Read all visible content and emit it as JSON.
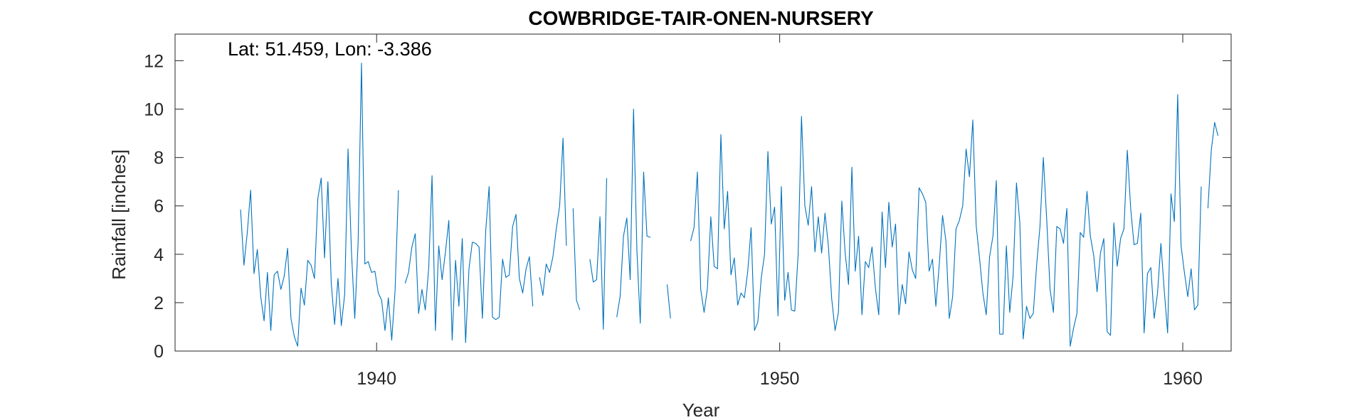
{
  "chart_data": {
    "type": "line",
    "title": "COWBRIDGE-TAIR-ONEN-NURSERY",
    "xlabel": "Year",
    "ylabel": "Rainfall [inches]",
    "annotation": "Lat: 51.459, Lon: -3.386",
    "xlim": [
      1935,
      1961.2
    ],
    "ylim": [
      0,
      13.1
    ],
    "xticks": [
      1940,
      1950,
      1960
    ],
    "yticks": [
      0,
      2,
      4,
      6,
      8,
      10,
      12
    ],
    "grid": false,
    "line_color": "#0072BD",
    "series": [
      {
        "x_start": 1936.625,
        "step": 0.08333,
        "values": [
          5.85,
          3.55,
          4.9,
          6.65,
          3.2,
          4.2,
          2.25,
          1.25,
          3.25,
          0.85,
          3.15,
          3.3,
          2.55,
          3.1,
          4.25,
          1.35,
          0.6,
          0.2,
          2.6,
          1.9,
          3.75,
          3.55,
          3.0,
          6.3,
          7.15,
          3.85,
          7.0,
          2.8,
          1.1,
          3.0,
          1.05,
          2.35,
          8.35,
          4.15,
          1.35,
          4.5,
          11.9,
          3.6,
          3.7,
          3.25,
          3.3,
          2.4,
          2.1,
          0.85,
          2.2,
          0.45,
          2.5,
          6.65,
          null,
          2.8,
          3.25,
          4.3,
          4.85,
          1.55,
          2.55,
          1.7,
          3.4,
          7.25,
          0.85,
          4.35,
          2.95,
          4.1,
          5.4,
          0.45,
          3.75,
          1.85,
          4.65,
          0.35,
          3.4,
          4.5,
          4.45,
          4.3,
          1.35,
          5.0,
          6.8,
          1.4,
          1.3,
          1.4,
          3.8,
          3.05,
          3.15,
          5.15,
          5.65,
          3.0,
          2.4,
          3.4,
          3.9,
          1.85,
          null,
          3.05,
          2.3,
          3.6,
          3.25,
          3.9,
          5.05,
          6.0,
          8.8,
          4.35,
          null,
          5.9,
          2.1,
          1.7,
          null,
          null,
          3.8,
          2.85,
          2.95,
          5.55,
          0.9,
          7.15,
          null,
          null,
          1.4,
          2.25,
          4.75,
          5.5,
          2.95,
          10.0,
          4.15,
          1.15,
          7.4,
          4.75,
          4.7,
          null,
          null,
          null,
          null,
          2.75,
          1.35,
          null,
          null,
          null,
          null,
          null,
          4.55,
          5.1,
          7.4,
          2.55,
          1.6,
          2.6,
          5.55,
          3.5,
          3.4,
          8.95,
          5.05,
          6.6,
          3.15,
          3.85,
          1.9,
          2.4,
          2.2,
          3.3,
          5.1,
          0.85,
          1.2,
          3.0,
          4.0,
          8.25,
          5.25,
          5.95,
          1.45,
          6.8,
          2.1,
          3.25,
          1.7,
          1.65,
          4.0,
          9.7,
          6.0,
          5.2,
          6.8,
          4.1,
          5.55,
          4.05,
          5.7,
          4.35,
          2.15,
          0.85,
          1.6,
          6.2,
          4.05,
          2.75,
          7.6,
          3.3,
          4.75,
          1.5,
          3.7,
          3.45,
          4.3,
          2.6,
          1.5,
          5.75,
          3.45,
          6.15,
          4.3,
          5.25,
          1.5,
          2.75,
          1.95,
          4.1,
          3.35,
          3.0,
          6.75,
          6.5,
          6.15,
          3.3,
          3.8,
          1.85,
          3.55,
          5.6,
          4.55,
          1.35,
          2.25,
          5.05,
          5.4,
          6.0,
          8.35,
          7.2,
          9.55,
          5.2,
          3.85,
          2.4,
          1.5,
          3.9,
          4.75,
          7.05,
          0.7,
          0.7,
          4.35,
          1.6,
          3.1,
          6.95,
          5.3,
          0.5,
          1.85,
          1.35,
          1.55,
          3.55,
          5.15,
          8.0,
          5.45,
          2.55,
          1.6,
          5.15,
          5.05,
          4.45,
          5.9,
          0.2,
          0.95,
          1.55,
          4.9,
          4.7,
          6.6,
          4.75,
          3.95,
          2.45,
          4.05,
          4.65,
          0.8,
          0.65,
          5.3,
          3.5,
          4.65,
          5.05,
          8.3,
          5.9,
          4.4,
          4.45,
          5.7,
          0.75,
          3.2,
          3.45,
          1.35,
          2.4,
          4.45,
          2.5,
          0.75,
          6.5,
          5.35,
          10.6,
          4.35,
          3.25,
          2.25,
          3.4,
          1.7,
          1.9,
          6.8,
          null,
          5.9,
          8.3,
          9.45,
          8.9
        ]
      }
    ]
  }
}
